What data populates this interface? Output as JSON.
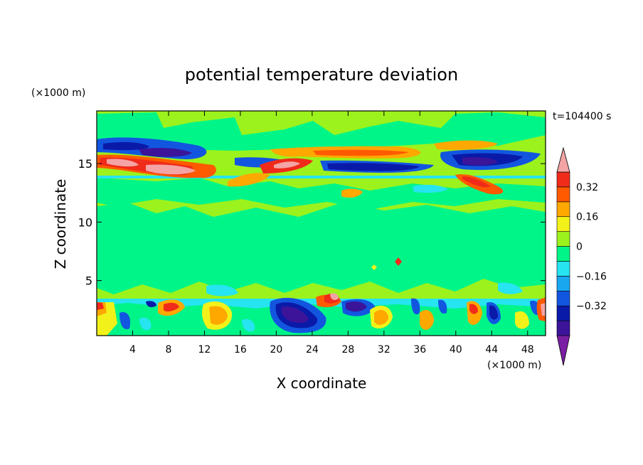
{
  "chart_data": {
    "type": "contour",
    "title": "potential temperature deviation",
    "xlabel": "X coordinate",
    "ylabel": "Z coordinate",
    "x_unit": "(×1000 m)",
    "y_unit": "(×1000 m)",
    "time_label": "t=104400 s",
    "xlim": [
      0,
      50
    ],
    "ylim": [
      0.3,
      19.5
    ],
    "x_ticks": [
      4,
      8,
      12,
      16,
      20,
      24,
      28,
      32,
      36,
      40,
      44,
      48
    ],
    "y_ticks": [
      5,
      10,
      15
    ],
    "colorbar": {
      "levels": [
        -0.48,
        -0.4,
        -0.32,
        -0.24,
        -0.16,
        -0.08,
        0,
        0.08,
        0.16,
        0.24,
        0.32,
        0.4
      ],
      "labeled_levels": [
        0.32,
        0.16,
        0,
        -0.16,
        -0.32
      ],
      "labels": [
        "0.32",
        "0.16",
        "0",
        "−0.16",
        "−0.32"
      ],
      "colors": [
        "#7a1fa3",
        "#3b149a",
        "#0a1aa8",
        "#1256e0",
        "#19a7f0",
        "#26e4f0",
        "#00f589",
        "#9cf21c",
        "#f2f21a",
        "#ffa800",
        "#ff5a00",
        "#f02b1a",
        "#f4a4a4"
      ]
    },
    "features": [
      {
        "x": [
          0,
          50
        ],
        "z": [
          14,
          14.4
        ],
        "value": 0.0,
        "note": "sharp horizontal discontinuity"
      },
      {
        "x": [
          0,
          11
        ],
        "z": [
          14.5,
          16
        ],
        "value": 0.4
      },
      {
        "x": [
          0,
          11
        ],
        "z": [
          16.3,
          17.3
        ],
        "value": -0.3
      },
      {
        "x": [
          18,
          26
        ],
        "z": [
          14.5,
          16
        ],
        "value": 0.32
      },
      {
        "x": [
          24,
          37
        ],
        "z": [
          14.3,
          15.2
        ],
        "value": -0.32
      },
      {
        "x": [
          39,
          46
        ],
        "z": [
          14.5,
          16.5
        ],
        "value": -0.4
      },
      {
        "x": [
          20,
          24
        ],
        "z": [
          0.8,
          3.2
        ],
        "value": -0.36
      },
      {
        "x": [
          28,
          31
        ],
        "z": [
          1.8,
          3.2
        ],
        "value": -0.3
      },
      {
        "x": [
          26,
          27
        ],
        "z": [
          2.6,
          3.4
        ],
        "value": 0.4
      }
    ]
  }
}
